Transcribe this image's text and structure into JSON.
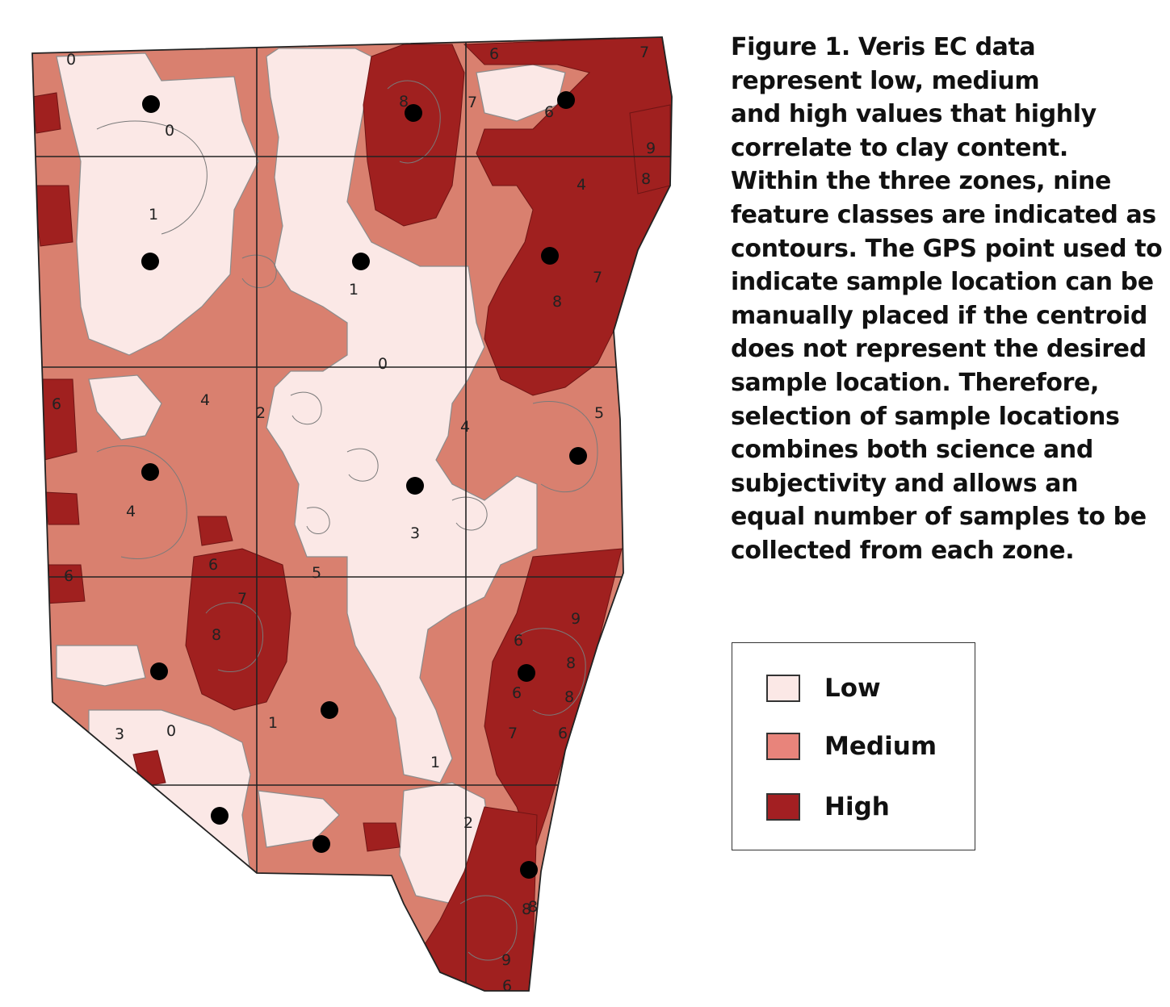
{
  "caption_lines": [
    "Figure 1. Veris EC data",
    "represent low, medium",
    "and high values that highly",
    "correlate to clay content.",
    "Within the three zones, nine",
    "feature classes are indicated as",
    "contours. The GPS point used to",
    "indicate sample location can be",
    "manually placed if the centroid",
    "does not represent the desired",
    "sample location. Therefore,",
    "selection of sample locations",
    "combines both science and",
    "subjectivity and allows an",
    "equal number of samples to be",
    "collected from each zone."
  ],
  "legend": {
    "items": [
      {
        "label": "Low",
        "color": "#fbe8e6"
      },
      {
        "label": "Medium",
        "color": "#e8847b"
      },
      {
        "label": "High",
        "color": "#a31f22"
      }
    ]
  },
  "map": {
    "colors": {
      "low": "#fbe8e6",
      "medium": "#d9806f",
      "high": "#a0201f",
      "contour": "#777777",
      "grid": "#222222",
      "point": "#000000"
    },
    "contour_labels": [
      "0",
      "0",
      "1",
      "1",
      "0",
      "2",
      "4",
      "4",
      "3",
      "5",
      "3",
      "0",
      "1",
      "2",
      "1",
      "6",
      "7",
      "8",
      "6",
      "6",
      "7",
      "8",
      "7",
      "9",
      "8",
      "4",
      "8",
      "7",
      "6",
      "6",
      "5",
      "6",
      "4",
      "6",
      "8",
      "9",
      "8",
      "6",
      "8",
      "7",
      "6",
      "8",
      "9"
    ]
  }
}
